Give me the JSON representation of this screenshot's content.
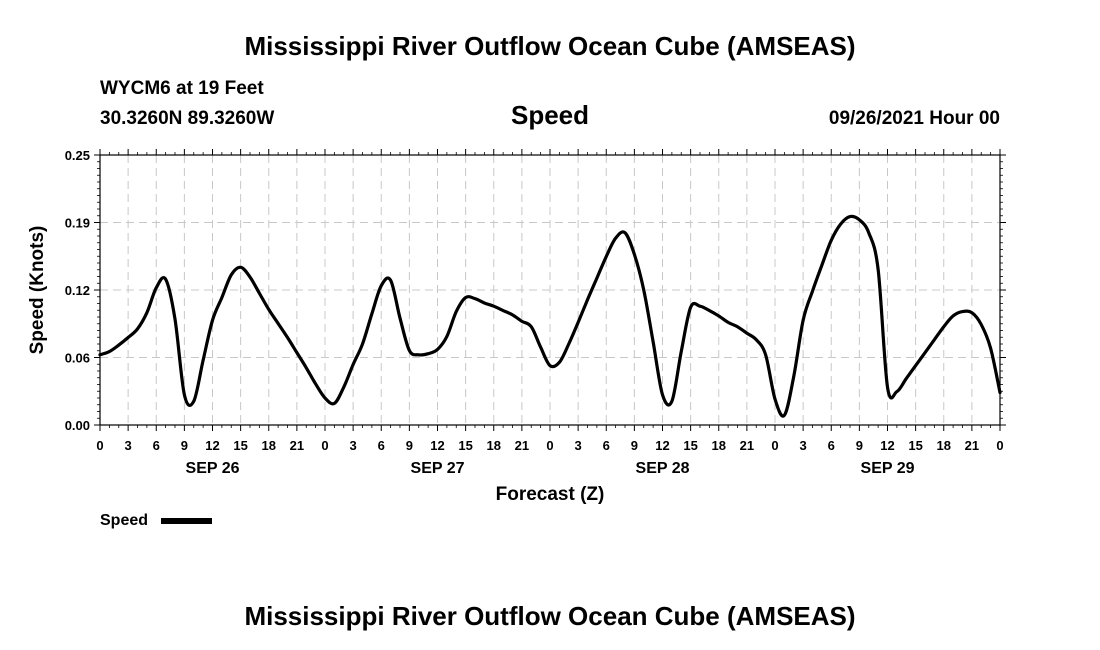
{
  "header": {
    "title": "Mississippi River Outflow Ocean Cube (AMSEAS)",
    "station": "WYCM6 at 19 Feet",
    "location": "30.3260N  89.3260W",
    "variable": "Speed",
    "datetime": "09/26/2021 Hour 00"
  },
  "footer": {
    "title": "Mississippi River Outflow Ocean Cube (AMSEAS)"
  },
  "legend": {
    "label": "Speed",
    "color": "#000000"
  },
  "chart_data": {
    "type": "line",
    "title": "Speed",
    "xlabel": "Forecast (Z)",
    "ylabel": "Speed (Knots)",
    "ylim": [
      0,
      0.25
    ],
    "xlim_hours": [
      0,
      96
    ],
    "yticks": [
      "0.00",
      "0.06",
      "0.12",
      "0.19",
      "0.25"
    ],
    "ytick_values": [
      0.0,
      0.0625,
      0.125,
      0.1875,
      0.25
    ],
    "xtick_hours": [
      0,
      3,
      6,
      9,
      12,
      15,
      18,
      21,
      24,
      27,
      30,
      33,
      36,
      39,
      42,
      45,
      48,
      51,
      54,
      57,
      60,
      63,
      66,
      69,
      72,
      75,
      78,
      81,
      84,
      87,
      90,
      93,
      96
    ],
    "xtick_labels": [
      "0",
      "3",
      "6",
      "9",
      "12",
      "15",
      "18",
      "21",
      "0",
      "3",
      "6",
      "9",
      "12",
      "15",
      "18",
      "21",
      "0",
      "3",
      "6",
      "9",
      "12",
      "15",
      "18",
      "21",
      "0",
      "3",
      "6",
      "9",
      "12",
      "15",
      "18",
      "21",
      "0"
    ],
    "day_labels": [
      {
        "label": "SEP 26",
        "hour": 12
      },
      {
        "label": "SEP 27",
        "hour": 36
      },
      {
        "label": "SEP 28",
        "hour": 60
      },
      {
        "label": "SEP 29",
        "hour": 84
      }
    ],
    "grid": true,
    "legend_position": "bottom-left",
    "series": [
      {
        "name": "Speed",
        "color": "#000000",
        "x": [
          0,
          1,
          2,
          3,
          4,
          5,
          6,
          7,
          8,
          9,
          10,
          11,
          12,
          13,
          14,
          15,
          16,
          17,
          18,
          19,
          20,
          21,
          22,
          23,
          24,
          25,
          26,
          27,
          28,
          29,
          30,
          31,
          32,
          33,
          34,
          35,
          36,
          37,
          38,
          39,
          40,
          41,
          42,
          43,
          44,
          45,
          46,
          47,
          48,
          49,
          50,
          51,
          52,
          53,
          54,
          55,
          56,
          57,
          58,
          59,
          60,
          61,
          62,
          63,
          64,
          65,
          66,
          67,
          68,
          69,
          70,
          71,
          72,
          73,
          74,
          75,
          76,
          77,
          78,
          79,
          80,
          81,
          82,
          83,
          84,
          85,
          86,
          87,
          88,
          89,
          90,
          91,
          92,
          93,
          94,
          95,
          96
        ],
        "y": [
          0.065,
          0.068,
          0.074,
          0.081,
          0.089,
          0.104,
          0.127,
          0.135,
          0.098,
          0.028,
          0.022,
          0.06,
          0.097,
          0.118,
          0.139,
          0.146,
          0.137,
          0.122,
          0.107,
          0.094,
          0.081,
          0.067,
          0.053,
          0.038,
          0.025,
          0.02,
          0.035,
          0.056,
          0.075,
          0.103,
          0.129,
          0.134,
          0.099,
          0.069,
          0.065,
          0.066,
          0.07,
          0.082,
          0.105,
          0.118,
          0.117,
          0.113,
          0.11,
          0.106,
          0.102,
          0.096,
          0.091,
          0.072,
          0.055,
          0.058,
          0.075,
          0.095,
          0.116,
          0.136,
          0.156,
          0.173,
          0.178,
          0.158,
          0.125,
          0.077,
          0.028,
          0.022,
          0.068,
          0.109,
          0.11,
          0.106,
          0.101,
          0.095,
          0.091,
          0.085,
          0.079,
          0.065,
          0.024,
          0.009,
          0.045,
          0.097,
          0.124,
          0.148,
          0.171,
          0.186,
          0.193,
          0.19,
          0.178,
          0.144,
          0.035,
          0.031,
          0.043,
          0.055,
          0.067,
          0.079,
          0.091,
          0.101,
          0.105,
          0.104,
          0.093,
          0.071,
          0.03
        ]
      }
    ]
  }
}
